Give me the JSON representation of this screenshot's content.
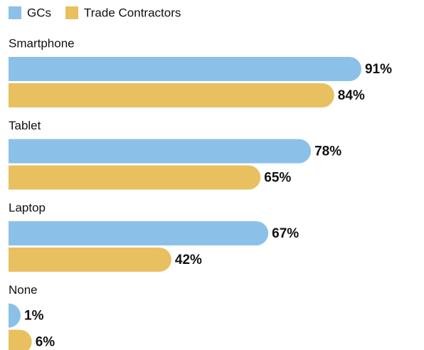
{
  "chart_data": {
    "type": "bar",
    "orientation": "horizontal",
    "categories": [
      "Smartphone",
      "Tablet",
      "Laptop",
      "None"
    ],
    "series": [
      {
        "name": "GCs",
        "color": "#8bc1e8",
        "values": [
          91,
          78,
          67,
          1
        ],
        "value_labels": [
          "91%",
          "78%",
          "67%",
          "1%"
        ]
      },
      {
        "name": "Trade Contractors",
        "color": "#e8c060",
        "values": [
          84,
          65,
          42,
          6
        ],
        "value_labels": [
          "84%",
          "65%",
          "42%",
          "6%"
        ]
      }
    ],
    "xlim": [
      0,
      100
    ],
    "legend": "top-left"
  }
}
